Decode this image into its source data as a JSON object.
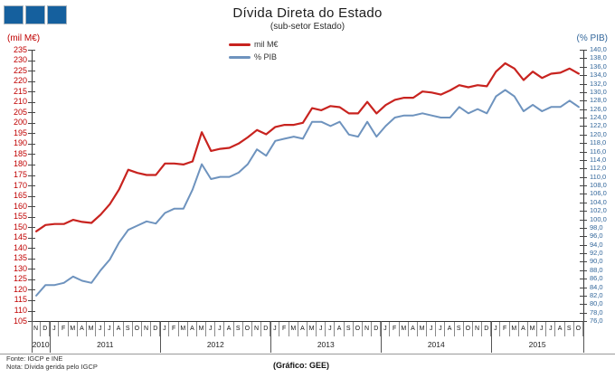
{
  "header": {
    "title": "Dívida Direta do Estado",
    "subtitle": "(sub-setor  Estado)"
  },
  "axes": {
    "left_label": "(mil M€)",
    "right_label": "(% PIB)",
    "left_ticks": [
      "235",
      "230",
      "225",
      "220",
      "215",
      "210",
      "205",
      "200",
      "195",
      "190",
      "185",
      "180",
      "175",
      "170",
      "165",
      "160",
      "155",
      "150",
      "145",
      "140",
      "135",
      "130",
      "125",
      "120",
      "115",
      "110",
      "105"
    ],
    "right_ticks": [
      "140,0",
      "138,0",
      "136,0",
      "134,0",
      "132,0",
      "130,0",
      "128,0",
      "126,0",
      "124,0",
      "122,0",
      "120,0",
      "118,0",
      "116,0",
      "114,0",
      "112,0",
      "110,0",
      "108,0",
      "106,0",
      "104,0",
      "102,0",
      "100,0",
      "98,0",
      "96,0",
      "94,0",
      "92,0",
      "90,0",
      "88,0",
      "86,0",
      "84,0",
      "82,0",
      "80,0",
      "78,0",
      "76,0"
    ]
  },
  "footer": {
    "fonte": "Fonte: IGCP e INE",
    "nota": "Nota: Dívida gerida pelo IGCP",
    "credit": "(Gráfico:  GEE)"
  },
  "logo": {
    "squares": 3,
    "color": "#15609e"
  },
  "chart_data": {
    "type": "line",
    "title": "Dívida Direta do Estado",
    "subtitle": "(sub-setor  Estado)",
    "grid": false,
    "legend_position": "top-center",
    "x_months": [
      "N",
      "D",
      "J",
      "F",
      "M",
      "A",
      "M",
      "J",
      "J",
      "A",
      "S",
      "O",
      "N",
      "D",
      "J",
      "F",
      "M",
      "A",
      "M",
      "J",
      "J",
      "A",
      "S",
      "O",
      "N",
      "D",
      "J",
      "F",
      "M",
      "A",
      "M",
      "J",
      "J",
      "A",
      "S",
      "O",
      "N",
      "D",
      "J",
      "F",
      "M",
      "A",
      "M",
      "J",
      "J",
      "A",
      "S",
      "O",
      "N",
      "D",
      "J",
      "F",
      "M",
      "A",
      "M",
      "J",
      "J",
      "A",
      "S",
      "O"
    ],
    "years": [
      {
        "label": "2010",
        "start": 0,
        "span": 2
      },
      {
        "label": "2011",
        "start": 2,
        "span": 12
      },
      {
        "label": "2012",
        "start": 14,
        "span": 12
      },
      {
        "label": "2013",
        "start": 26,
        "span": 12
      },
      {
        "label": "2014",
        "start": 38,
        "span": 12
      },
      {
        "label": "2015",
        "start": 50,
        "span": 10
      }
    ],
    "left_axis": {
      "min": 105,
      "max": 235,
      "step": 5,
      "unit": "mil M€"
    },
    "right_axis": {
      "min": 76,
      "max": 140,
      "step": 2,
      "unit": "% PIB"
    },
    "series": [
      {
        "name": "mil M€",
        "axis": "left",
        "color": "#c8231f",
        "values": [
          148,
          151,
          151.5,
          151.5,
          153.5,
          152.5,
          152,
          156,
          161,
          168,
          177.5,
          176,
          175,
          175,
          180.5,
          180.5,
          180,
          181.5,
          195.5,
          186.5,
          187.5,
          188,
          190,
          193,
          196.5,
          194.5,
          198,
          199,
          199,
          200,
          207,
          206,
          208,
          207.5,
          204.5,
          204.5,
          210,
          204.5,
          208.5,
          211,
          212,
          212,
          215,
          214.5,
          213.5,
          215.5,
          218,
          217,
          218,
          217.5,
          224.5,
          228.5,
          226,
          220.5,
          224.5,
          221.5,
          223.5,
          224,
          226,
          223.5
        ]
      },
      {
        "name": "% PIB",
        "axis": "right",
        "color": "#6e93be",
        "values": [
          82,
          84.5,
          84.5,
          85,
          86.5,
          85.5,
          85,
          88,
          90.5,
          94.5,
          97.5,
          98.5,
          99.5,
          99,
          101.5,
          102.5,
          102.5,
          107,
          113,
          109.5,
          110,
          110,
          111,
          113,
          116.5,
          115,
          118.5,
          119,
          119.5,
          119,
          123,
          123,
          122,
          123,
          120,
          119.5,
          123,
          119.5,
          122,
          124,
          124.5,
          124.5,
          125,
          124.5,
          124,
          124,
          126.5,
          125,
          126,
          125,
          129,
          130.5,
          129,
          125.5,
          127,
          125.5,
          126.5,
          126.5,
          128,
          126.5
        ]
      }
    ]
  }
}
